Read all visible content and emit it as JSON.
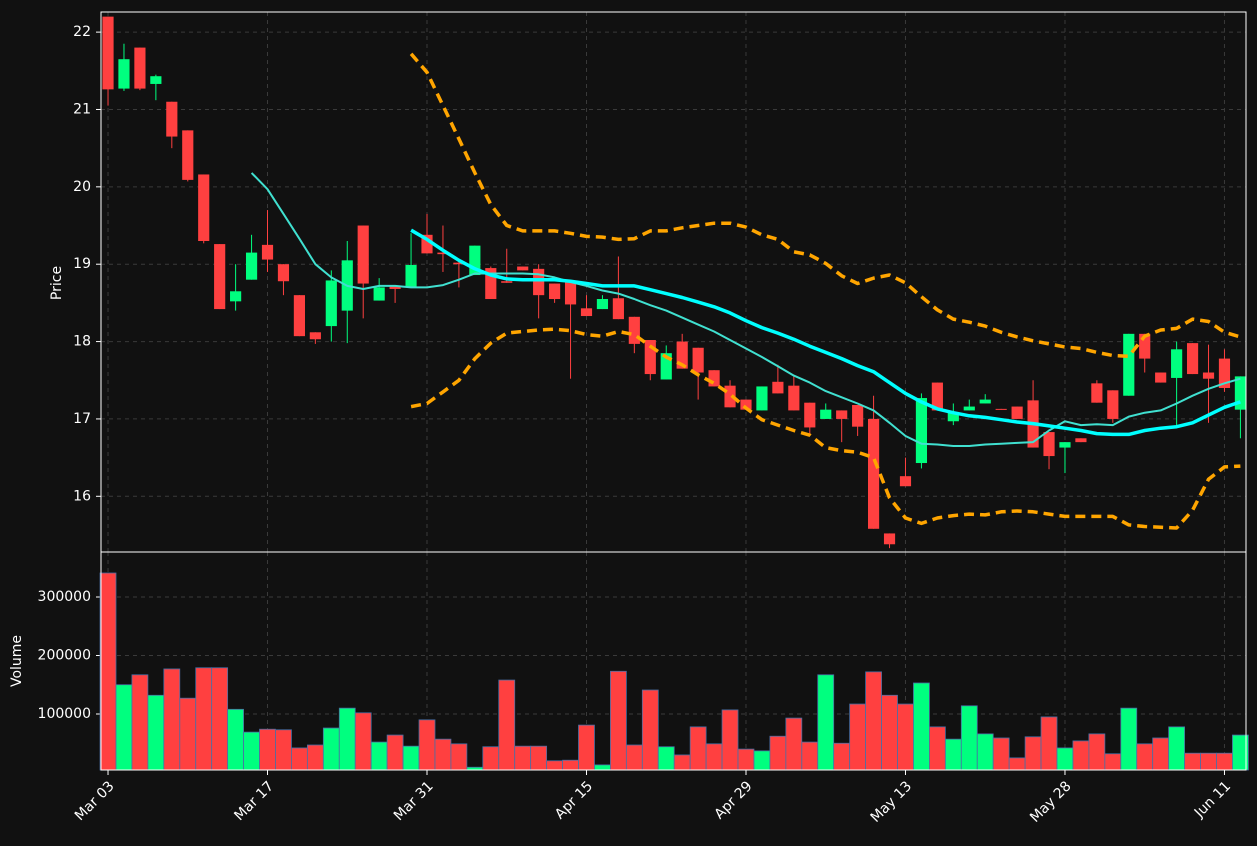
{
  "chart_data": [
    {
      "type": "candlestick",
      "y_label": "Price",
      "xlim": [
        -0.44,
        71.35
      ],
      "ylim": [
        15.28,
        22.26
      ],
      "yticks": [
        16,
        17,
        18,
        19,
        20,
        21,
        22
      ],
      "grid": true,
      "up_color": "#00ff7f",
      "down_color": "#ff4040",
      "open": [
        22.2,
        21.27,
        21.8,
        21.33,
        21.1,
        20.73,
        20.16,
        19.26,
        18.52,
        18.8,
        19.25,
        19.0,
        18.6,
        18.12,
        18.2,
        18.4,
        19.5,
        18.53,
        18.72,
        18.7,
        19.38,
        19.15,
        19.02,
        18.86,
        18.95,
        18.78,
        18.97,
        18.94,
        18.75,
        18.78,
        18.43,
        18.42,
        18.56,
        18.32,
        18.02,
        17.51,
        18.0,
        17.92,
        17.63,
        17.43,
        17.25,
        17.11,
        17.48,
        17.43,
        17.21,
        17.0,
        17.11,
        17.18,
        17.0,
        15.52,
        16.26,
        16.43,
        17.47,
        16.97,
        17.11,
        17.2,
        17.13,
        17.16,
        17.24,
        16.83,
        16.63,
        16.75,
        17.46,
        17.37,
        17.3,
        18.1,
        17.6,
        17.53,
        17.98,
        17.6,
        17.78,
        17.12
      ],
      "high": [
        22.2,
        21.85,
        21.8,
        21.45,
        21.1,
        20.73,
        20.16,
        19.26,
        19.0,
        19.38,
        19.7,
        19.0,
        18.6,
        18.12,
        18.92,
        19.3,
        19.5,
        18.82,
        18.72,
        19.4,
        19.65,
        19.5,
        19.05,
        19.24,
        18.97,
        19.2,
        18.97,
        19.0,
        18.75,
        18.78,
        18.6,
        18.6,
        19.1,
        18.32,
        18.02,
        17.95,
        18.1,
        17.92,
        17.63,
        17.5,
        17.25,
        17.42,
        17.7,
        17.56,
        17.21,
        17.2,
        17.11,
        17.18,
        17.3,
        15.52,
        16.5,
        17.33,
        17.47,
        17.2,
        17.25,
        17.32,
        17.13,
        17.16,
        17.5,
        16.83,
        16.7,
        16.75,
        17.5,
        17.37,
        18.1,
        18.1,
        17.6,
        18.0,
        17.98,
        17.96,
        17.9,
        17.55
      ],
      "low": [
        21.05,
        21.24,
        21.25,
        21.12,
        20.5,
        20.07,
        19.27,
        18.42,
        18.4,
        18.8,
        18.9,
        18.6,
        18.07,
        17.97,
        18.0,
        17.98,
        18.3,
        18.53,
        18.5,
        18.7,
        19.14,
        18.9,
        18.7,
        18.86,
        18.55,
        18.76,
        18.92,
        18.3,
        18.5,
        17.52,
        18.33,
        18.42,
        18.29,
        17.85,
        17.5,
        17.51,
        17.65,
        17.25,
        17.42,
        17.15,
        17.12,
        17.11,
        17.33,
        17.11,
        16.8,
        17.0,
        16.7,
        16.78,
        15.58,
        15.33,
        16.13,
        16.36,
        17.11,
        16.92,
        17.11,
        17.2,
        17.12,
        17.0,
        16.63,
        16.35,
        16.3,
        16.7,
        17.21,
        16.95,
        17.3,
        17.6,
        17.47,
        16.9,
        17.58,
        16.95,
        17.35,
        16.75
      ],
      "close": [
        21.26,
        21.65,
        21.27,
        21.43,
        20.65,
        20.09,
        19.3,
        18.42,
        18.65,
        19.15,
        19.06,
        18.78,
        18.07,
        18.03,
        18.79,
        19.05,
        18.75,
        18.7,
        18.68,
        18.99,
        19.14,
        19.13,
        19.0,
        19.24,
        18.55,
        18.76,
        18.92,
        18.6,
        18.55,
        18.48,
        18.33,
        18.55,
        18.29,
        17.97,
        17.58,
        17.85,
        17.65,
        17.6,
        17.42,
        17.15,
        17.12,
        17.42,
        17.33,
        17.11,
        16.89,
        17.12,
        17.0,
        16.9,
        15.58,
        15.38,
        16.13,
        17.27,
        17.11,
        17.09,
        17.16,
        17.25,
        17.12,
        17.0,
        16.63,
        16.52,
        16.7,
        16.7,
        17.21,
        17.0,
        18.1,
        17.78,
        17.47,
        17.9,
        17.58,
        17.52,
        17.4,
        17.55
      ],
      "lines": [
        {
          "color": "#40e0d0",
          "width": 2,
          "dashed": false,
          "values": [
            null,
            null,
            null,
            null,
            null,
            null,
            null,
            null,
            null,
            20.18,
            19.97,
            19.65,
            19.33,
            19.0,
            18.83,
            18.72,
            18.68,
            18.72,
            18.72,
            18.7,
            18.7,
            18.73,
            18.8,
            18.88,
            18.88,
            18.88,
            18.88,
            18.87,
            18.83,
            18.77,
            18.72,
            18.66,
            18.62,
            18.55,
            18.47,
            18.4,
            18.31,
            18.22,
            18.13,
            18.02,
            17.91,
            17.8,
            17.68,
            17.56,
            17.47,
            17.36,
            17.28,
            17.2,
            17.11,
            16.95,
            16.78,
            16.68,
            16.67,
            16.65,
            16.65,
            16.67,
            16.68,
            16.69,
            16.7,
            16.85,
            16.97,
            16.92,
            16.93,
            16.92,
            17.03,
            17.08,
            17.11,
            17.2,
            17.3,
            17.39,
            17.46,
            17.52
          ]
        },
        {
          "color": "#00ffff",
          "width": 3.5,
          "dashed": false,
          "values": [
            null,
            null,
            null,
            null,
            null,
            null,
            null,
            null,
            null,
            null,
            null,
            null,
            null,
            null,
            null,
            null,
            null,
            null,
            null,
            19.44,
            19.32,
            19.18,
            19.05,
            18.94,
            18.86,
            18.81,
            18.8,
            18.8,
            18.8,
            18.78,
            18.75,
            18.72,
            18.72,
            18.72,
            18.67,
            18.62,
            18.57,
            18.51,
            18.45,
            18.37,
            18.27,
            18.18,
            18.11,
            18.03,
            17.94,
            17.86,
            17.78,
            17.69,
            17.61,
            17.47,
            17.33,
            17.22,
            17.13,
            17.08,
            17.04,
            17.02,
            16.99,
            16.96,
            16.94,
            16.91,
            16.88,
            16.85,
            16.81,
            16.8,
            16.8,
            16.85,
            16.88,
            16.9,
            16.95,
            17.05,
            17.15,
            17.22
          ]
        },
        {
          "color": "#ffa500",
          "width": 3.5,
          "dashed": true,
          "values": [
            null,
            null,
            null,
            null,
            null,
            null,
            null,
            null,
            null,
            null,
            null,
            null,
            null,
            null,
            null,
            null,
            null,
            null,
            null,
            21.72,
            21.48,
            21.05,
            20.62,
            20.18,
            19.77,
            19.5,
            19.43,
            19.43,
            19.43,
            19.4,
            19.36,
            19.35,
            19.32,
            19.33,
            19.43,
            19.43,
            19.47,
            19.5,
            19.53,
            19.53,
            19.48,
            19.38,
            19.32,
            19.16,
            19.12,
            19.01,
            18.85,
            18.75,
            18.82,
            18.86,
            18.76,
            18.58,
            18.41,
            18.29,
            18.25,
            18.2,
            18.12,
            18.06,
            18.01,
            17.97,
            17.93,
            17.91,
            17.86,
            17.82,
            17.81,
            18.07,
            18.15,
            18.17,
            18.29,
            18.26,
            18.12,
            18.06
          ]
        },
        {
          "color": "#ffa500",
          "width": 3.5,
          "dashed": true,
          "values": [
            null,
            null,
            null,
            null,
            null,
            null,
            null,
            null,
            null,
            null,
            null,
            null,
            null,
            null,
            null,
            null,
            null,
            null,
            null,
            17.16,
            17.2,
            17.35,
            17.5,
            17.78,
            17.98,
            18.11,
            18.13,
            18.15,
            18.16,
            18.14,
            18.09,
            18.07,
            18.13,
            18.09,
            17.94,
            17.8,
            17.7,
            17.57,
            17.46,
            17.32,
            17.14,
            16.99,
            16.92,
            16.85,
            16.79,
            16.63,
            16.59,
            16.57,
            16.5,
            15.98,
            15.72,
            15.65,
            15.72,
            15.75,
            15.77,
            15.76,
            15.8,
            15.81,
            15.8,
            15.77,
            15.74,
            15.74,
            15.74,
            15.74,
            15.63,
            15.61,
            15.6,
            15.59,
            15.82,
            16.22,
            16.38,
            16.39
          ]
        }
      ]
    },
    {
      "type": "bar",
      "y_label": "Volume",
      "xlim": [
        -0.44,
        71.35
      ],
      "ylim": [
        4274,
        376900
      ],
      "yticks": [
        100000,
        200000,
        300000
      ],
      "grid": true,
      "up_color": "#00ff7f",
      "down_color": "#ff4040",
      "edge_color": "#4a6fa5",
      "categories": [
        "Mar 03",
        null,
        null,
        null,
        null,
        null,
        null,
        null,
        null,
        null,
        "Mar 17",
        null,
        null,
        null,
        null,
        null,
        null,
        null,
        null,
        null,
        "Mar 31",
        null,
        null,
        null,
        null,
        null,
        null,
        null,
        null,
        null,
        "Apr 15",
        null,
        null,
        null,
        null,
        null,
        null,
        null,
        null,
        null,
        "Apr 29",
        null,
        null,
        null,
        null,
        null,
        null,
        null,
        null,
        null,
        "May 13",
        null,
        null,
        null,
        null,
        null,
        null,
        null,
        null,
        null,
        "May 28",
        null,
        null,
        null,
        null,
        null,
        null,
        null,
        null,
        null,
        "Jun 11",
        null
      ],
      "values": [
        341000,
        150000,
        167000,
        132000,
        177000,
        127000,
        179000,
        179000,
        108000,
        69000,
        74000,
        73000,
        42000,
        47000,
        76000,
        110000,
        102000,
        52000,
        64000,
        45000,
        90000,
        57000,
        49000,
        9000,
        44000,
        158000,
        45000,
        45000,
        20000,
        21000,
        81000,
        13000,
        173000,
        47000,
        141000,
        44000,
        30000,
        78000,
        49000,
        107000,
        40000,
        37000,
        62000,
        93000,
        52000,
        167000,
        50000,
        117000,
        172000,
        132000,
        117000,
        153000,
        78000,
        57000,
        114000,
        66000,
        59000,
        25000,
        61000,
        95000,
        42000,
        54000,
        66000,
        32000,
        110000,
        49000,
        59000,
        78000,
        33000,
        33000,
        33000,
        64000
      ]
    }
  ]
}
